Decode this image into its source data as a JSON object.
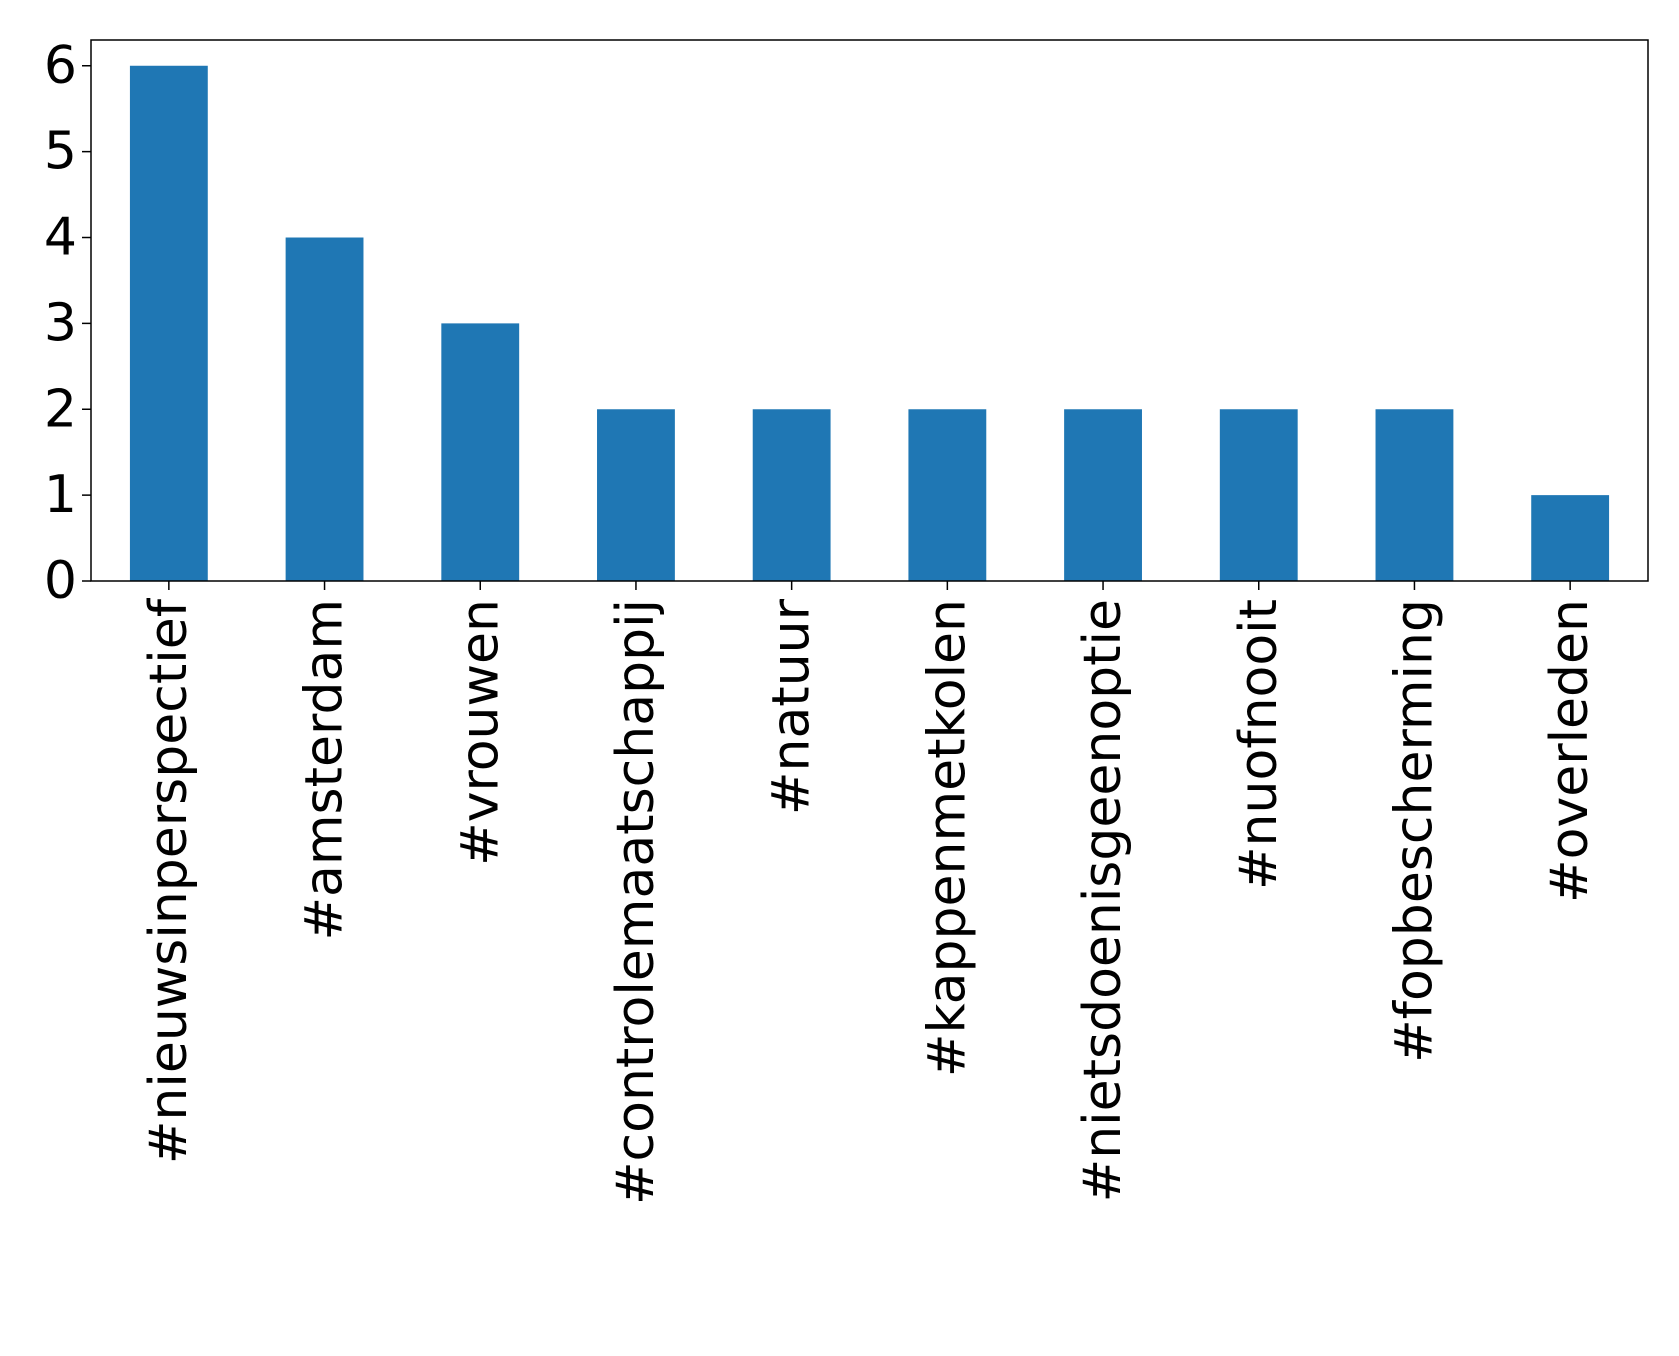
{
  "chart_data": {
    "type": "bar",
    "categories": [
      "#nieuwsinperspectief",
      "#amsterdam",
      "#vrouwen",
      "#controlemaatschappij",
      "#natuur",
      "#kappenmetkolen",
      "#nietsdoenisgeenoptie",
      "#nuofnooit",
      "#fopbescherming",
      "#overleden"
    ],
    "values": [
      6,
      4,
      3,
      2,
      2,
      2,
      2,
      2,
      2,
      1
    ],
    "color": "#1f77b4",
    "ylim": [
      0,
      6.3
    ],
    "yticks": [
      0,
      1,
      2,
      3,
      4,
      5,
      6
    ],
    "grid": false
  }
}
